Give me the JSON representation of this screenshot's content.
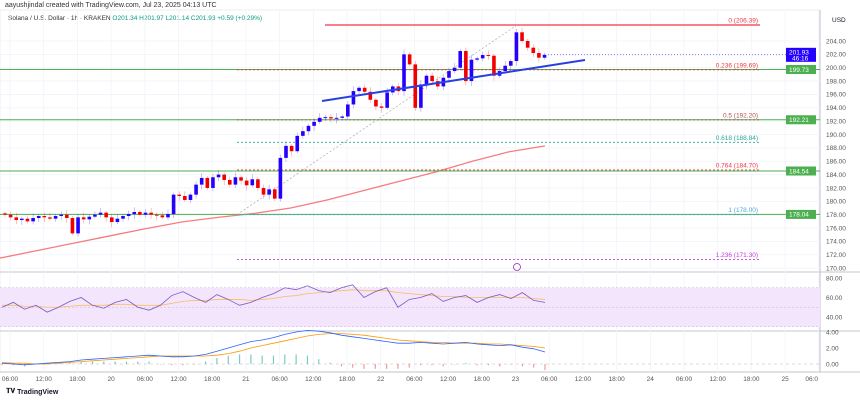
{
  "credit": "aayushjindal created with TradingView.com, Jul 23, 2025 04:13 UTC",
  "legend": {
    "symbol": "Solana / U.S. Dollar · 1h · KRAKEN",
    "open": "O201.34",
    "high": "H201.97",
    "low": "L201.14",
    "close": "C201.93",
    "change": "+0.59 (+0.29%)"
  },
  "currency_label": "USD",
  "price_ticks": [
    "204.00",
    "202.00",
    "200.00",
    "198.00",
    "196.00",
    "194.00",
    "192.00",
    "190.00",
    "188.00",
    "186.00",
    "184.00",
    "182.00",
    "180.00",
    "178.00",
    "176.00",
    "174.00",
    "172.00",
    "170.00"
  ],
  "price_tick_values": [
    204,
    202,
    200,
    198,
    196,
    194,
    192,
    190,
    188,
    186,
    184,
    182,
    180,
    178,
    176,
    174,
    172,
    170
  ],
  "current_price": {
    "price": "201.93",
    "countdown": "46:16",
    "value": 201.93,
    "color": "#2400ff"
  },
  "level_badges": [
    {
      "label": "199.73",
      "value": 199.73
    },
    {
      "label": "192.21",
      "value": 192.21
    },
    {
      "label": "184.54",
      "value": 184.54
    },
    {
      "label": "178.04",
      "value": 178.04
    }
  ],
  "fib_levels": [
    {
      "label": "0 (206.39)",
      "value": 206.39,
      "color": "#f23645"
    },
    {
      "label": "0.236 (199.69)",
      "value": 199.69,
      "color": "#f23645"
    },
    {
      "label": "0.5 (192.20)",
      "value": 192.2,
      "color": "#b05050"
    },
    {
      "label": "0.618 (188.84)",
      "value": 188.84,
      "color": "#22ab94"
    },
    {
      "label": "0.764 (184.70)",
      "value": 184.7,
      "color": "#f23645"
    },
    {
      "label": "1 (178.00)",
      "value": 178.0,
      "color": "#4aa8d8"
    },
    {
      "label": "1.236 (171.30)",
      "value": 171.3,
      "color": "#c040d8"
    }
  ],
  "rsi_ticks": [
    "80.00",
    "60.00",
    "40.00"
  ],
  "rsi_tick_values": [
    80,
    60,
    40
  ],
  "macd_ticks": [
    "4.00",
    "2.00",
    "0.00"
  ],
  "macd_tick_values": [
    4,
    2,
    0
  ],
  "time_labels": [
    "06:00",
    "12:00",
    "18:00",
    "20",
    "06:00",
    "12:00",
    "18:00",
    "21",
    "06:00",
    "12:00",
    "18:00",
    "22",
    "06:00",
    "12:00",
    "18:00",
    "23",
    "06:00",
    "12:00",
    "18:00",
    "24",
    "06:00",
    "12:00",
    "18:00",
    "25",
    "06:0"
  ],
  "colors": {
    "up": "#2400ff",
    "down": "#f20000",
    "support": "#4caf50",
    "ma": "#f77c80",
    "trendline": "#2940e0",
    "rsi": "#7e57c2",
    "rsi_ma": "#f5c060",
    "macd": "#2962ff",
    "signal": "#ff9800"
  },
  "candles_close": [
    178.0,
    177.6,
    177.2,
    177.4,
    177.0,
    177.5,
    177.8,
    177.6,
    177.4,
    177.8,
    178.0,
    177.5,
    175.2,
    177.6,
    177.3,
    177.7,
    178.0,
    178.3,
    177.6,
    176.9,
    177.4,
    177.8,
    178.1,
    178.4,
    178.0,
    178.3,
    178.0,
    177.9,
    177.6,
    178.1,
    181.0,
    180.8,
    180.2,
    181.0,
    182.5,
    183.5,
    182.0,
    183.6,
    184.0,
    183.2,
    182.5,
    183.6,
    183.1,
    182.4,
    183.3,
    182.0,
    181.0,
    181.8,
    180.4,
    186.5,
    188.3,
    187.5,
    189.8,
    190.5,
    191.3,
    191.9,
    192.5,
    192.6,
    192.4,
    192.5,
    192.7,
    194.5,
    196.5,
    197.0,
    196.4,
    195.2,
    194.2,
    194.0,
    196.3,
    197.2,
    196.5,
    202.0,
    200.5,
    194.0,
    197.5,
    198.8,
    198.0,
    197.2,
    198.5,
    199.5,
    200.0,
    202.5,
    198.0,
    201.2,
    201.4,
    201.9,
    201.8,
    198.8,
    199.5,
    200.3,
    201.0,
    205.3,
    204.0,
    203.0,
    202.2,
    201.5,
    201.93
  ],
  "ma_points": [
    171.5,
    172.6,
    173.7,
    174.8,
    175.9,
    176.9,
    177.6,
    178.2,
    179.0,
    180.2,
    181.6,
    183.0,
    184.4,
    186.0,
    187.4,
    188.3
  ],
  "rsi_values": [
    50,
    55,
    48,
    52,
    45,
    50,
    56,
    60,
    52,
    49,
    55,
    58,
    50,
    47,
    52,
    62,
    66,
    60,
    55,
    63,
    58,
    52,
    55,
    60,
    64,
    70,
    68,
    72,
    67,
    65,
    70,
    73,
    60,
    66,
    70,
    50,
    58,
    60,
    64,
    56,
    60,
    62,
    55,
    60,
    63,
    59,
    65,
    57,
    55
  ],
  "rsi_ma_values": [
    52,
    52,
    51,
    51,
    50,
    50,
    51,
    52,
    52,
    52,
    53,
    53,
    52,
    52,
    52,
    54,
    56,
    57,
    57,
    58,
    58,
    58,
    57,
    58,
    59,
    61,
    62,
    64,
    65,
    66,
    67,
    68,
    67,
    67,
    67,
    65,
    64,
    63,
    62,
    61,
    61,
    60,
    60,
    60,
    60,
    60,
    60,
    59,
    58
  ],
  "macd_values": [
    0.1,
    0.0,
    -0.1,
    0.0,
    0.1,
    0.2,
    0.3,
    0.5,
    0.6,
    0.7,
    0.8,
    0.9,
    1.0,
    1.1,
    1.0,
    0.9,
    0.9,
    1.0,
    1.2,
    1.6,
    2.0,
    2.4,
    2.8,
    3.0,
    3.3,
    3.7,
    4.0,
    4.2,
    4.1,
    3.9,
    3.6,
    3.4,
    3.2,
    3.0,
    2.8,
    2.6,
    2.6,
    2.7,
    2.6,
    2.5,
    2.6,
    2.7,
    2.5,
    2.4,
    2.3,
    2.4,
    2.1,
    1.9,
    1.5
  ],
  "signal_values": [
    0.2,
    0.1,
    0.1,
    0.0,
    0.0,
    0.1,
    0.2,
    0.3,
    0.4,
    0.5,
    0.6,
    0.7,
    0.8,
    0.9,
    1.0,
    1.0,
    1.0,
    1.0,
    1.0,
    1.1,
    1.3,
    1.6,
    2.0,
    2.3,
    2.6,
    2.9,
    3.2,
    3.5,
    3.7,
    3.8,
    3.8,
    3.7,
    3.6,
    3.4,
    3.2,
    3.0,
    2.9,
    2.8,
    2.7,
    2.7,
    2.6,
    2.6,
    2.6,
    2.5,
    2.5,
    2.4,
    2.3,
    2.2,
    2.0
  ],
  "footer_brand": "TradingView"
}
